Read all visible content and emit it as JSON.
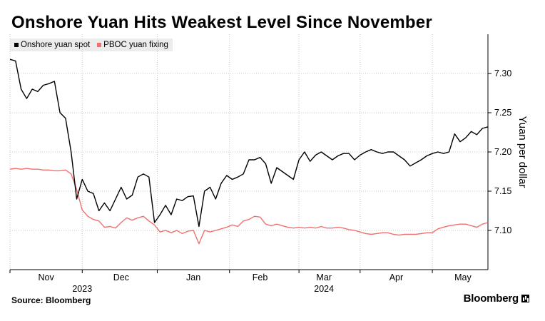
{
  "title": "Onshore Yuan Hits Weakest Level Since November",
  "source": "Source: Bloomberg",
  "brand": "Bloomberg",
  "colors": {
    "spot": "#000000",
    "fixing": "#f07070",
    "grid": "#c8c8c8"
  },
  "chart_data": {
    "type": "line",
    "title": "Onshore Yuan Hits Weakest Level Since November",
    "ylabel": "Yuan per dollar",
    "ylim": [
      7.05,
      7.35
    ],
    "xlim": [
      0,
      172
    ],
    "y_ticks": [
      7.1,
      7.15,
      7.2,
      7.25,
      7.3
    ],
    "y_tick_labels": [
      "7.10",
      "7.15",
      "7.20",
      "7.25",
      "7.30"
    ],
    "x_ticks": [
      {
        "label": "Nov",
        "x": 13
      },
      {
        "label": "Dec",
        "x": 40
      },
      {
        "label": "Jan",
        "x": 66
      },
      {
        "label": "Feb",
        "x": 90
      },
      {
        "label": "Mar",
        "x": 113
      },
      {
        "label": "Apr",
        "x": 139
      },
      {
        "label": "May",
        "x": 163
      }
    ],
    "x_year_labels": [
      {
        "label": "2023",
        "x": 26
      },
      {
        "label": "2024",
        "x": 113
      }
    ],
    "x_gridlines": [
      0,
      26,
      53,
      79,
      104,
      126,
      152
    ],
    "grid": true,
    "legend_position": "top-left",
    "series": [
      {
        "name": "Onshore yuan spot",
        "color": "#000000",
        "points": [
          [
            0,
            7.318
          ],
          [
            2,
            7.316
          ],
          [
            4,
            7.28
          ],
          [
            6,
            7.268
          ],
          [
            8,
            7.28
          ],
          [
            10,
            7.277
          ],
          [
            12,
            7.285
          ],
          [
            14,
            7.287
          ],
          [
            16,
            7.29
          ],
          [
            18,
            7.25
          ],
          [
            20,
            7.243
          ],
          [
            22,
            7.2
          ],
          [
            24,
            7.14
          ],
          [
            26,
            7.165
          ],
          [
            28,
            7.15
          ],
          [
            30,
            7.147
          ],
          [
            32,
            7.125
          ],
          [
            34,
            7.135
          ],
          [
            36,
            7.125
          ],
          [
            38,
            7.14
          ],
          [
            40,
            7.155
          ],
          [
            42,
            7.14
          ],
          [
            44,
            7.145
          ],
          [
            46,
            7.168
          ],
          [
            48,
            7.172
          ],
          [
            50,
            7.168
          ],
          [
            52,
            7.11
          ],
          [
            54,
            7.12
          ],
          [
            56,
            7.132
          ],
          [
            58,
            7.12
          ],
          [
            60,
            7.14
          ],
          [
            62,
            7.138
          ],
          [
            64,
            7.143
          ],
          [
            66,
            7.144
          ],
          [
            68,
            7.105
          ],
          [
            70,
            7.15
          ],
          [
            72,
            7.155
          ],
          [
            74,
            7.14
          ],
          [
            76,
            7.16
          ],
          [
            78,
            7.17
          ],
          [
            80,
            7.165
          ],
          [
            82,
            7.168
          ],
          [
            84,
            7.172
          ],
          [
            86,
            7.19
          ],
          [
            88,
            7.19
          ],
          [
            90,
            7.193
          ],
          [
            92,
            7.185
          ],
          [
            94,
            7.16
          ],
          [
            96,
            7.18
          ],
          [
            98,
            7.175
          ],
          [
            100,
            7.17
          ],
          [
            102,
            7.165
          ],
          [
            104,
            7.19
          ],
          [
            106,
            7.2
          ],
          [
            108,
            7.188
          ],
          [
            110,
            7.196
          ],
          [
            112,
            7.2
          ],
          [
            114,
            7.195
          ],
          [
            116,
            7.19
          ],
          [
            118,
            7.195
          ],
          [
            120,
            7.198
          ],
          [
            122,
            7.198
          ],
          [
            124,
            7.19
          ],
          [
            126,
            7.196
          ],
          [
            128,
            7.2
          ],
          [
            130,
            7.203
          ],
          [
            132,
            7.2
          ],
          [
            134,
            7.198
          ],
          [
            136,
            7.2
          ],
          [
            138,
            7.2
          ],
          [
            140,
            7.195
          ],
          [
            142,
            7.19
          ],
          [
            144,
            7.182
          ],
          [
            146,
            7.186
          ],
          [
            148,
            7.19
          ],
          [
            150,
            7.195
          ],
          [
            152,
            7.198
          ],
          [
            154,
            7.2
          ],
          [
            156,
            7.198
          ],
          [
            158,
            7.2
          ],
          [
            160,
            7.223
          ],
          [
            162,
            7.213
          ],
          [
            164,
            7.218
          ],
          [
            166,
            7.226
          ],
          [
            168,
            7.222
          ],
          [
            170,
            7.23
          ],
          [
            172,
            7.232
          ]
        ]
      },
      {
        "name": "PBOC yuan fixing",
        "color": "#f07070",
        "points": [
          [
            0,
            7.178
          ],
          [
            2,
            7.179
          ],
          [
            4,
            7.178
          ],
          [
            6,
            7.179
          ],
          [
            8,
            7.178
          ],
          [
            10,
            7.178
          ],
          [
            12,
            7.177
          ],
          [
            14,
            7.177
          ],
          [
            16,
            7.176
          ],
          [
            18,
            7.176
          ],
          [
            20,
            7.177
          ],
          [
            22,
            7.172
          ],
          [
            24,
            7.152
          ],
          [
            26,
            7.126
          ],
          [
            28,
            7.118
          ],
          [
            30,
            7.114
          ],
          [
            32,
            7.112
          ],
          [
            34,
            7.104
          ],
          [
            36,
            7.105
          ],
          [
            38,
            7.103
          ],
          [
            40,
            7.11
          ],
          [
            42,
            7.116
          ],
          [
            44,
            7.113
          ],
          [
            46,
            7.116
          ],
          [
            48,
            7.118
          ],
          [
            50,
            7.112
          ],
          [
            52,
            7.107
          ],
          [
            54,
            7.098
          ],
          [
            56,
            7.1
          ],
          [
            58,
            7.097
          ],
          [
            60,
            7.1
          ],
          [
            62,
            7.096
          ],
          [
            64,
            7.099
          ],
          [
            66,
            7.1
          ],
          [
            68,
            7.083
          ],
          [
            70,
            7.1
          ],
          [
            72,
            7.098
          ],
          [
            74,
            7.1
          ],
          [
            76,
            7.102
          ],
          [
            78,
            7.104
          ],
          [
            80,
            7.107
          ],
          [
            82,
            7.105
          ],
          [
            84,
            7.112
          ],
          [
            86,
            7.114
          ],
          [
            88,
            7.118
          ],
          [
            90,
            7.117
          ],
          [
            92,
            7.108
          ],
          [
            94,
            7.106
          ],
          [
            96,
            7.108
          ],
          [
            98,
            7.106
          ],
          [
            100,
            7.104
          ],
          [
            102,
            7.103
          ],
          [
            104,
            7.104
          ],
          [
            106,
            7.103
          ],
          [
            108,
            7.104
          ],
          [
            110,
            7.103
          ],
          [
            112,
            7.105
          ],
          [
            114,
            7.103
          ],
          [
            116,
            7.103
          ],
          [
            118,
            7.104
          ],
          [
            120,
            7.103
          ],
          [
            122,
            7.101
          ],
          [
            124,
            7.1
          ],
          [
            126,
            7.098
          ],
          [
            128,
            7.096
          ],
          [
            130,
            7.095
          ],
          [
            132,
            7.096
          ],
          [
            134,
            7.097
          ],
          [
            136,
            7.097
          ],
          [
            138,
            7.095
          ],
          [
            140,
            7.094
          ],
          [
            142,
            7.095
          ],
          [
            144,
            7.095
          ],
          [
            146,
            7.095
          ],
          [
            148,
            7.096
          ],
          [
            150,
            7.097
          ],
          [
            152,
            7.097
          ],
          [
            154,
            7.102
          ],
          [
            156,
            7.104
          ],
          [
            158,
            7.106
          ],
          [
            160,
            7.107
          ],
          [
            162,
            7.108
          ],
          [
            164,
            7.108
          ],
          [
            166,
            7.106
          ],
          [
            168,
            7.104
          ],
          [
            170,
            7.108
          ],
          [
            172,
            7.11
          ]
        ]
      }
    ]
  }
}
